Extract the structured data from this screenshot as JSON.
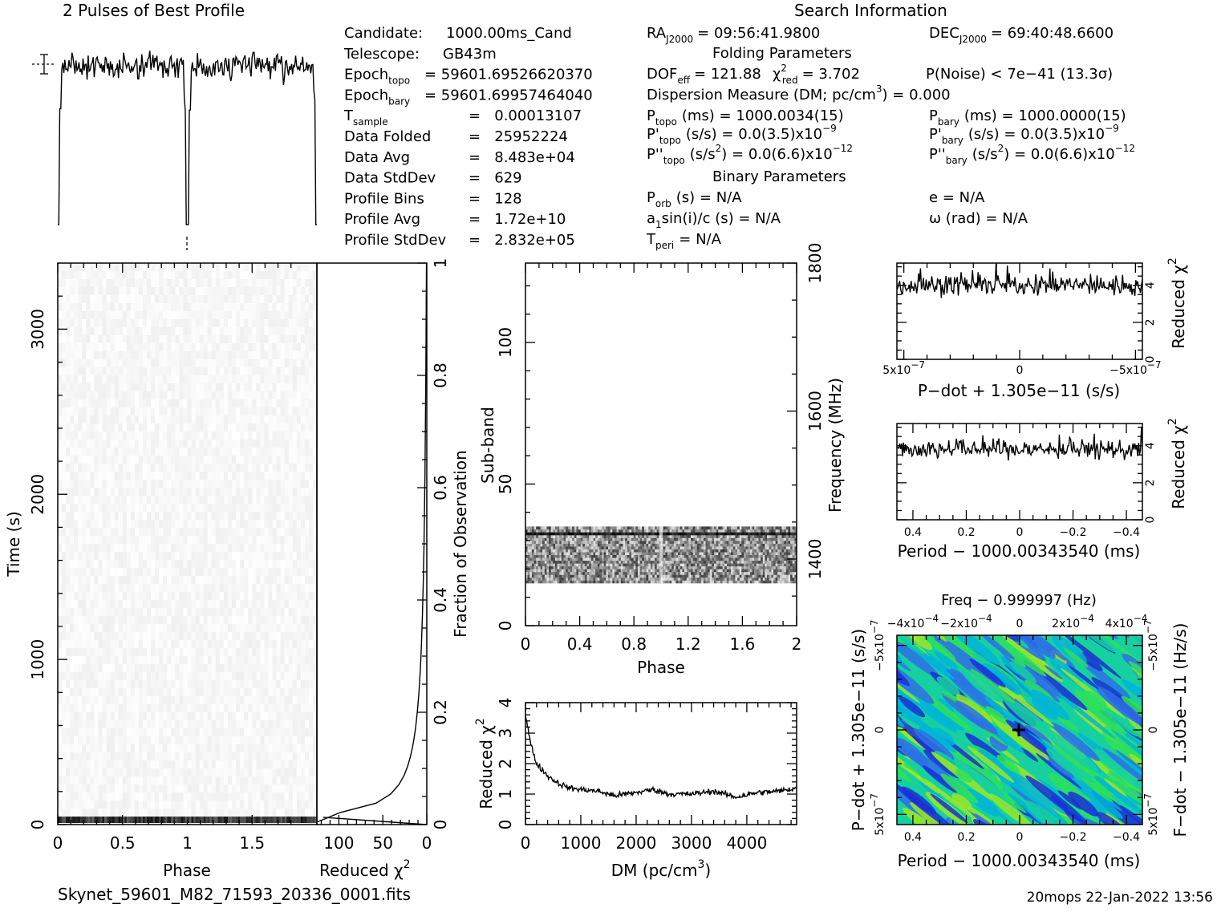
{
  "title_profile": "2 Pulses of Best Profile",
  "title_search": "Search Information",
  "filename": "Skynet_59601_M82_71593_20336_0001.fits",
  "footer": "20mops 22-Jan-2022 13:56",
  "candidate_info": [
    {
      "label": "Candidate:",
      "value": "1000.00ms_Cand"
    },
    {
      "label": "Telescope:",
      "value": "GB43m"
    },
    {
      "label": "Epoch",
      "sub": "topo",
      "value": "= 59601.69526620370"
    },
    {
      "label": "Epoch",
      "sub": "bary",
      "value": "= 59601.69957464040"
    },
    {
      "label": "T",
      "sub": "sample",
      "value": "=   0.00013107"
    },
    {
      "label": "Data Folded",
      "value": "=   25952224"
    },
    {
      "label": "Data Avg",
      "value": "=   8.483e+04"
    },
    {
      "label": "Data StdDev",
      "value": "=   629"
    },
    {
      "label": "Profile Bins",
      "value": "=   128"
    },
    {
      "label": "Profile Avg",
      "value": "=   1.72e+10"
    },
    {
      "label": "Profile StdDev",
      "value": "=   2.832e+05"
    }
  ],
  "search_info": {
    "ra_label": "RA",
    "ra_sub": "J2000",
    "ra_value": "= 09:56:41.9800",
    "dec_label": "DEC",
    "dec_sub": "J2000",
    "dec_value": "= 69:40:48.6600",
    "folding_header": "Folding Parameters",
    "dof_label": "DOF",
    "dof_sub": "eff",
    "dof_value": "= 121.88",
    "chi_label": "χ",
    "chi_sup": "2",
    "chi_sub": "red",
    "chi_value": "= 3.702",
    "pnoise": "P(Noise) < 7e−41   (13.3σ)",
    "dm_line": "Dispersion Measure (DM; pc/cm",
    "dm_sup": "3",
    "dm_value": ") = 0.000",
    "ptopo_label": "P",
    "ptopo_sub": "topo",
    "ptopo_value": "(ms) =  1000.0034(15)",
    "pbary_label": "P",
    "pbary_sub": "bary",
    "pbary_value": "(ms) =  1000.0000(15)",
    "pdtopo_label": "P'",
    "pdtopo_sub": "topo",
    "pdtopo_value": "(s/s) = 0.0(3.5)x10",
    "pdtopo_exp": "−9",
    "pdbary_label": "P'",
    "pdbary_sub": "bary",
    "pdbary_value": "(s/s) = 0.0(3.5)x10",
    "pdbary_exp": "−9",
    "pddtopo_label": "P''",
    "pddtopo_sub": "topo",
    "pddtopo_value": "(s/s",
    "pddtopo_sup": "2",
    "pddtopo_value2": ") = 0.0(6.6)x10",
    "pddtopo_exp": "−12",
    "pddbary_label": "P''",
    "pddbary_sub": "bary",
    "pddbary_value": "(s/s",
    "pddbary_sup": "2",
    "pddbary_value2": ") = 0.0(6.6)x10",
    "pddbary_exp": "−12",
    "binary_header": "Binary Parameters",
    "porb_label": "P",
    "porb_sub": "orb",
    "porb_value": "(s) = N/A",
    "e_line": "e = N/A",
    "asini_label": "a",
    "asini_sub": "1",
    "asini_value": "sin(i)/c (s) = N/A",
    "omega_line": "ω (rad) = N/A",
    "tperi_label": "T",
    "tperi_sub": "peri",
    "tperi_value": "= N/A"
  },
  "chart_data": [
    {
      "name": "profile",
      "type": "line",
      "description_none": "",
      "x_range": [
        0,
        2
      ],
      "pulse_phases": [
        0.0,
        1.0
      ]
    },
    {
      "name": "time-phase",
      "type": "heatmap",
      "xlabel": "Phase",
      "ylabel": "Time (s)",
      "xticks": [
        "0",
        "0.5",
        "1",
        "1.5"
      ],
      "xtick_values": [
        0,
        0.5,
        1,
        1.5
      ],
      "yticks": [
        "0",
        "1000",
        "2000",
        "3000"
      ],
      "ytick_values": [
        0,
        1000,
        2000,
        3000
      ],
      "xlim": [
        0,
        2
      ],
      "ylim": [
        0,
        3400
      ]
    },
    {
      "name": "reduced-chi2-vs-time",
      "type": "line",
      "xlabel": "Reduced χ",
      "xlabel_sup": "2",
      "xticks": [
        "100",
        "50",
        "0"
      ],
      "xtick_values": [
        100,
        50,
        0
      ],
      "xlim": [
        125,
        0
      ],
      "y2label": "Fraction of Observation",
      "y2ticks": [
        "0",
        "0.2",
        "0.4",
        "0.6",
        "0.8",
        "1"
      ],
      "y2tick_values": [
        0,
        0.2,
        0.4,
        0.6,
        0.8,
        1
      ]
    },
    {
      "name": "subband-phase",
      "type": "heatmap",
      "xlabel": "Phase",
      "ylabel": "Sub-band",
      "y2label": "Frequency (MHz)",
      "xticks": [
        "0",
        "0.4",
        "0.8",
        "1.2",
        "1.6",
        "2"
      ],
      "xtick_values": [
        0,
        0.4,
        0.8,
        1.2,
        1.6,
        2
      ],
      "yticks": [
        "0",
        "50",
        "100"
      ],
      "ytick_values": [
        0,
        50,
        100
      ],
      "y2ticks": [
        "1400",
        "1600",
        "1800"
      ],
      "y2tick_values": [
        1400,
        1600,
        1800
      ],
      "xlim": [
        0,
        2
      ],
      "ylim": [
        0,
        128
      ],
      "y2lim": [
        1310,
        1800
      ],
      "signal_subbands": [
        15,
        35
      ]
    },
    {
      "name": "dm-curve",
      "type": "line",
      "xlabel": "DM (pc/cm",
      "xlabel_sup": "3",
      "xlabel_end": ")",
      "ylabel": "Reduced χ",
      "ylabel_sup": "2",
      "xticks": [
        "0",
        "1000",
        "2000",
        "3000",
        "4000"
      ],
      "xtick_values": [
        0,
        1000,
        2000,
        3000,
        4000
      ],
      "yticks": [
        "0",
        "1",
        "2",
        "3",
        "4"
      ],
      "ytick_values": [
        0,
        1,
        2,
        3,
        4
      ],
      "xlim": [
        0,
        4900
      ],
      "ylim": [
        0,
        4
      ],
      "points": [
        [
          0,
          3.6
        ],
        [
          100,
          2.6
        ],
        [
          200,
          2.0
        ],
        [
          400,
          1.6
        ],
        [
          600,
          1.35
        ],
        [
          800,
          1.2
        ],
        [
          1000,
          1.15
        ],
        [
          1300,
          1.1
        ],
        [
          1600,
          0.95
        ],
        [
          2000,
          1.05
        ],
        [
          2300,
          1.15
        ],
        [
          2600,
          1.0
        ],
        [
          3000,
          1.0
        ],
        [
          3400,
          1.1
        ],
        [
          3800,
          0.9
        ],
        [
          4200,
          1.05
        ],
        [
          4600,
          1.1
        ],
        [
          4900,
          1.2
        ]
      ]
    },
    {
      "name": "pdot-curve",
      "type": "line",
      "xlabel": "P−dot + 1.305e−11 (s/s)",
      "ylabel": "Reduced χ",
      "ylabel_sup": "2",
      "xticks": [
        "5x10",
        "0",
        "−5x10"
      ],
      "xtick_exps": [
        "−7",
        "",
        "−7"
      ],
      "xtick_values": [
        5e-07,
        0,
        -5e-07
      ],
      "yticks": [
        "0",
        "2",
        "4"
      ],
      "ytick_values": [
        0,
        2,
        4
      ],
      "xlim": [
        5.3e-07,
        -5.3e-07
      ],
      "ylim": [
        0,
        5.2
      ],
      "mean": 4.0
    },
    {
      "name": "period-curve",
      "type": "line",
      "xlabel": "Period − 1000.00343540 (ms)",
      "ylabel": "Reduced χ",
      "ylabel_sup": "2",
      "xticks": [
        "0.4",
        "0.2",
        "0",
        "−0.2",
        "−0.4"
      ],
      "xtick_values": [
        0.4,
        0.2,
        0,
        -0.2,
        -0.4
      ],
      "yticks": [
        "0",
        "2",
        "4"
      ],
      "ytick_values": [
        0,
        2,
        4
      ],
      "xlim": [
        0.46,
        -0.46
      ],
      "ylim": [
        0,
        5.2
      ],
      "mean": 3.8
    },
    {
      "name": "p-pdot-plane",
      "type": "heatmap",
      "title": "Freq − 0.999997 (Hz)",
      "xlabel": "Period − 1000.00343540 (ms)",
      "ylabel": "P−dot + 1.305e−11 (s/s)",
      "y2label": "F−dot − 1.305e−11 (Hz/s)",
      "xticks": [
        "0.4",
        "0.2",
        "0",
        "−0.2",
        "−0.4"
      ],
      "xtick_values": [
        0.4,
        0.2,
        0,
        -0.2,
        -0.4
      ],
      "x2ticks": [
        "−4x10",
        "−2x10",
        "0",
        "2x10",
        "4x10"
      ],
      "x2tick_exps": [
        "−4",
        "−4",
        "",
        "−4",
        "−4"
      ],
      "yticks": [
        "5x10",
        "0",
        "−5x10"
      ],
      "ytick_exps": [
        "−7",
        "",
        "−7"
      ],
      "y2ticks": [
        "−5x10",
        "0",
        "5x10"
      ],
      "y2tick_exps": [
        "−7",
        "",
        "−7"
      ],
      "colors": [
        "#1a2fd6",
        "#2e6ee8",
        "#00b4d8",
        "#16d0a0",
        "#2ee05a",
        "#9be823"
      ],
      "best_marker": [
        0,
        0
      ]
    }
  ]
}
